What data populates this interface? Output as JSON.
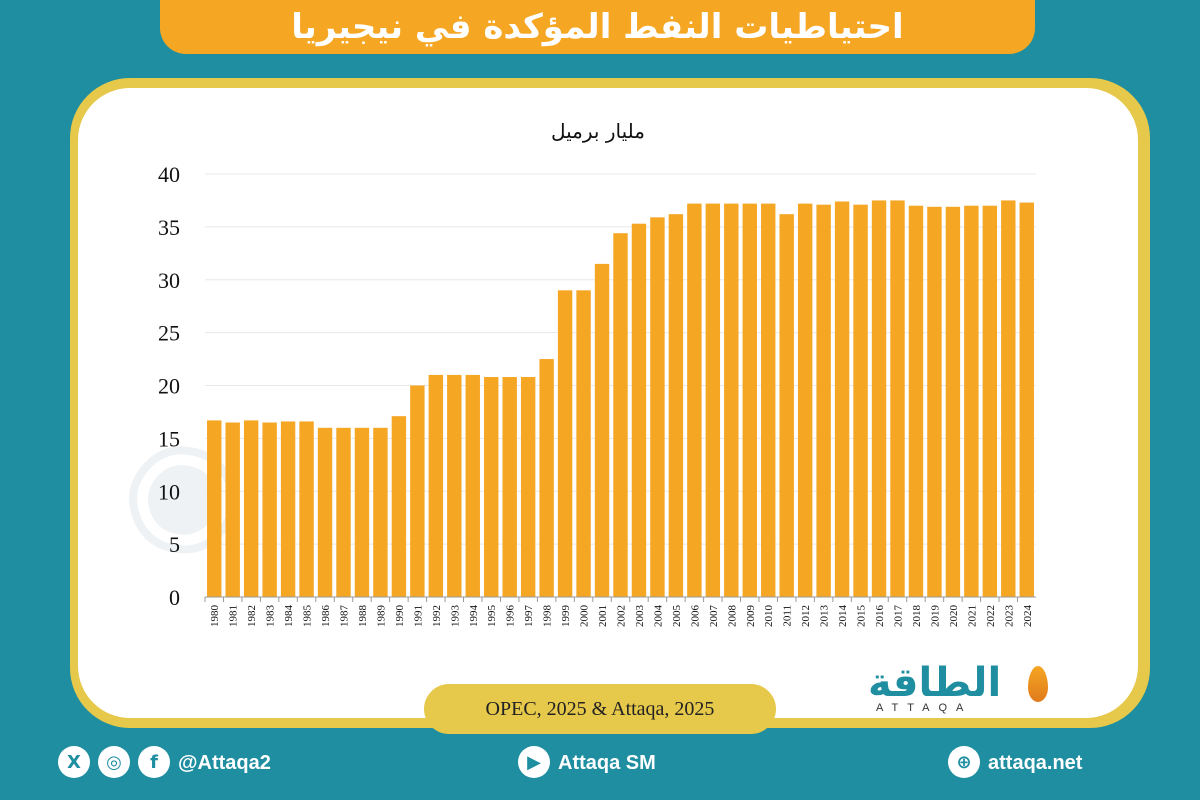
{
  "header": {
    "title": "احتياطيات النفط المؤكدة في نيجيريا"
  },
  "chart_data": {
    "type": "bar",
    "unit_label": "مليار برميل",
    "categories": [
      "1980",
      "1981",
      "1982",
      "1983",
      "1984",
      "1985",
      "1986",
      "1987",
      "1988",
      "1989",
      "1990",
      "1991",
      "1992",
      "1993",
      "1994",
      "1995",
      "1996",
      "1997",
      "1998",
      "1999",
      "2000",
      "2001",
      "2002",
      "2003",
      "2004",
      "2005",
      "2006",
      "2007",
      "2008",
      "2009",
      "2010",
      "2011",
      "2012",
      "2013",
      "2014",
      "2015",
      "2016",
      "2017",
      "2018",
      "2019",
      "2020",
      "2021",
      "2022",
      "2023",
      "2024"
    ],
    "values": [
      16.7,
      16.5,
      16.7,
      16.5,
      16.6,
      16.6,
      16.0,
      16.0,
      16.0,
      16.0,
      17.1,
      20.0,
      21.0,
      21.0,
      21.0,
      20.8,
      20.8,
      20.8,
      22.5,
      29.0,
      29.0,
      31.5,
      34.4,
      35.3,
      35.9,
      36.2,
      37.2,
      37.2,
      37.2,
      37.2,
      37.2,
      36.2,
      37.2,
      37.1,
      37.4,
      37.1,
      37.5,
      37.5,
      37.0,
      36.9,
      36.9,
      37.0,
      37.0,
      37.5,
      37.3
    ],
    "y_ticks": [
      0,
      5,
      10,
      15,
      20,
      25,
      30,
      35,
      40
    ],
    "ylim": [
      0,
      40
    ],
    "grid": true,
    "bar_color": "#f5a623"
  },
  "source": "OPEC, 2025 & Attaqa, 2025",
  "logo": {
    "arabic": "الطاقة",
    "latin": "ATTAQA"
  },
  "footer": {
    "social_handle": "@Attaqa2",
    "youtube": "Attaqa SM",
    "website": "attaqa.net",
    "x_icon_glyph": "X",
    "instagram_icon_glyph": "◎",
    "facebook_icon_glyph": "f",
    "youtube_icon_glyph": "▶",
    "globe_icon_glyph": "⊕"
  }
}
